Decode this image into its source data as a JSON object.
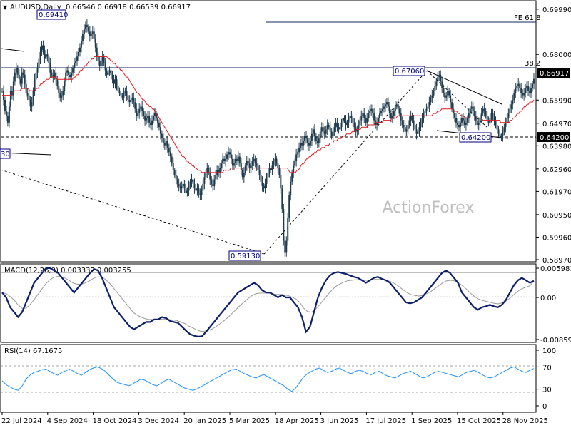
{
  "chart_data": {
    "type": "candlestick",
    "symbol_title": "AUDUSD,Daily",
    "ohlc_header": "0.66546 0.66918 0.66539 0.66917",
    "watermark": "ActionForex",
    "x_tick_labels": [
      "22 Jul 2024",
      "4 Sep 2024",
      "18 Oct 2024",
      "3 Dec 2024",
      "20 Jan 2025",
      "5 Mar 2025",
      "18 Apr 2025",
      "3 Jun 2025",
      "17 Jul 2025",
      "1 Sep 2025",
      "15 Oct 2025",
      "28 Nov 2025"
    ],
    "price_axis": {
      "ylim": [
        0.5897,
        0.7014
      ],
      "ticks": [
        "0.69990",
        "0.68000",
        "0.66917",
        "0.65990",
        "0.64970",
        "0.64200",
        "0.63980",
        "0.62960",
        "0.61970",
        "0.60950",
        "0.59960",
        "0.58970"
      ]
    },
    "current_price": "0.66917",
    "level_labels": {
      "high": "0.69410",
      "mid": "0.67060",
      "low": "0.59130",
      "support": "0.64200",
      "trend_low": "0.64200",
      "left_edge": "30"
    },
    "fib_labels": {
      "fe": "FE 61.8",
      "retrace": "38.2"
    },
    "close_series": [
      0.664,
      0.66,
      0.655,
      0.653,
      0.65,
      0.657,
      0.664,
      0.662,
      0.668,
      0.672,
      0.674,
      0.671,
      0.669,
      0.667,
      0.672,
      0.671,
      0.667,
      0.663,
      0.662,
      0.66,
      0.657,
      0.659,
      0.664,
      0.669,
      0.672,
      0.674,
      0.678,
      0.681,
      0.684,
      0.682,
      0.678,
      0.68,
      0.679,
      0.676,
      0.672,
      0.671,
      0.67,
      0.672,
      0.669,
      0.666,
      0.663,
      0.661,
      0.662,
      0.664,
      0.668,
      0.672,
      0.673,
      0.671,
      0.67,
      0.672,
      0.674,
      0.676,
      0.677,
      0.679,
      0.681,
      0.683,
      0.686,
      0.689,
      0.691,
      0.693,
      0.692,
      0.69,
      0.688,
      0.689,
      0.69,
      0.687,
      0.683,
      0.679,
      0.677,
      0.675,
      0.677,
      0.679,
      0.676,
      0.673,
      0.671,
      0.672,
      0.673,
      0.671,
      0.669,
      0.667,
      0.669,
      0.666,
      0.664,
      0.663,
      0.662,
      0.661,
      0.663,
      0.664,
      0.662,
      0.66,
      0.659,
      0.66,
      0.661,
      0.659,
      0.656,
      0.653,
      0.654,
      0.656,
      0.657,
      0.655,
      0.653,
      0.651,
      0.652,
      0.653,
      0.65,
      0.649,
      0.651,
      0.653,
      0.654,
      0.652,
      0.65,
      0.648,
      0.645,
      0.643,
      0.641,
      0.64,
      0.642,
      0.639,
      0.637,
      0.635,
      0.632,
      0.629,
      0.627,
      0.625,
      0.623,
      0.622,
      0.621,
      0.622,
      0.623,
      0.621,
      0.619,
      0.62,
      0.622,
      0.624,
      0.625,
      0.623,
      0.621,
      0.62,
      0.621,
      0.619,
      0.618,
      0.62,
      0.623,
      0.626,
      0.628,
      0.63,
      0.628,
      0.625,
      0.623,
      0.622,
      0.625,
      0.627,
      0.629,
      0.628,
      0.63,
      0.632,
      0.634,
      0.633,
      0.634,
      0.636,
      0.637,
      0.636,
      0.634,
      0.631,
      0.632,
      0.634,
      0.633,
      0.635,
      0.632,
      0.629,
      0.626,
      0.628,
      0.631,
      0.633,
      0.632,
      0.63,
      0.631,
      0.633,
      0.634,
      0.632,
      0.631,
      0.629,
      0.627,
      0.624,
      0.622,
      0.621,
      0.623,
      0.626,
      0.628,
      0.63,
      0.629,
      0.631,
      0.633,
      0.634,
      0.632,
      0.63,
      0.627,
      0.621,
      0.612,
      0.598,
      0.593,
      0.598,
      0.608,
      0.618,
      0.624,
      0.628,
      0.631,
      0.633,
      0.636,
      0.637,
      0.639,
      0.641,
      0.64,
      0.642,
      0.644,
      0.643,
      0.641,
      0.64,
      0.642,
      0.645,
      0.647,
      0.644,
      0.642,
      0.641,
      0.643,
      0.646,
      0.648,
      0.646,
      0.645,
      0.647,
      0.649,
      0.648,
      0.646,
      0.644,
      0.646,
      0.648,
      0.65,
      0.648,
      0.647,
      0.648,
      0.65,
      0.652,
      0.651,
      0.649,
      0.65,
      0.652,
      0.653,
      0.652,
      0.65,
      0.648,
      0.646,
      0.647,
      0.649,
      0.651,
      0.653,
      0.654,
      0.652,
      0.65,
      0.652,
      0.654,
      0.655,
      0.656,
      0.654,
      0.651,
      0.649,
      0.65,
      0.652,
      0.654,
      0.655,
      0.656,
      0.657,
      0.658,
      0.659,
      0.657,
      0.654,
      0.652,
      0.653,
      0.655,
      0.657,
      0.658,
      0.656,
      0.654,
      0.651,
      0.649,
      0.648,
      0.646,
      0.647,
      0.649,
      0.651,
      0.653,
      0.651,
      0.649,
      0.647,
      0.645,
      0.646,
      0.648,
      0.65,
      0.652,
      0.654,
      0.655,
      0.656,
      0.657,
      0.659,
      0.661,
      0.662,
      0.664,
      0.666,
      0.668,
      0.67,
      0.671,
      0.668,
      0.665,
      0.663,
      0.661,
      0.662,
      0.664,
      0.662,
      0.659,
      0.656,
      0.654,
      0.652,
      0.65,
      0.649,
      0.648,
      0.65,
      0.652,
      0.651,
      0.649,
      0.65,
      0.652,
      0.654,
      0.656,
      0.657,
      0.655,
      0.653,
      0.651,
      0.649,
      0.65,
      0.652,
      0.654,
      0.656,
      0.655,
      0.653,
      0.651,
      0.65,
      0.652,
      0.654,
      0.653,
      0.651,
      0.649,
      0.647,
      0.645,
      0.643,
      0.644,
      0.646,
      0.648,
      0.65,
      0.652,
      0.654,
      0.656,
      0.658,
      0.66,
      0.663,
      0.665,
      0.666,
      0.667,
      0.665,
      0.663,
      0.662,
      0.663,
      0.665,
      0.666,
      0.664,
      0.663,
      0.665,
      0.667,
      0.6692
    ],
    "ma_series": [
      0.662,
      0.662,
      0.662,
      0.662,
      0.662,
      0.662,
      0.662,
      0.663,
      0.663,
      0.664,
      0.664,
      0.664,
      0.664,
      0.664,
      0.665,
      0.665,
      0.665,
      0.665,
      0.665,
      0.665,
      0.664,
      0.664,
      0.664,
      0.664,
      0.664,
      0.665,
      0.665,
      0.666,
      0.667,
      0.667,
      0.668,
      0.668,
      0.669,
      0.669,
      0.669,
      0.67,
      0.67,
      0.67,
      0.67,
      0.67,
      0.669,
      0.669,
      0.669,
      0.669,
      0.669,
      0.669,
      0.669,
      0.669,
      0.669,
      0.669,
      0.669,
      0.669,
      0.67,
      0.67,
      0.671,
      0.671,
      0.672,
      0.673,
      0.673,
      0.674,
      0.675,
      0.675,
      0.676,
      0.677,
      0.677,
      0.678,
      0.678,
      0.679,
      0.679,
      0.679,
      0.679,
      0.679,
      0.679,
      0.679,
      0.679,
      0.679,
      0.679,
      0.678,
      0.678,
      0.677,
      0.677,
      0.676,
      0.676,
      0.675,
      0.674,
      0.674,
      0.673,
      0.673,
      0.672,
      0.671,
      0.67,
      0.67,
      0.669,
      0.668,
      0.667,
      0.666,
      0.665,
      0.664,
      0.663,
      0.663,
      0.662,
      0.661,
      0.66,
      0.66,
      0.659,
      0.658,
      0.658,
      0.657,
      0.657,
      0.656,
      0.656,
      0.655,
      0.654,
      0.653,
      0.652,
      0.651,
      0.65,
      0.649,
      0.648,
      0.647,
      0.646,
      0.645,
      0.644,
      0.643,
      0.642,
      0.641,
      0.64,
      0.639,
      0.638,
      0.637,
      0.636,
      0.635,
      0.635,
      0.634,
      0.633,
      0.633,
      0.632,
      0.632,
      0.631,
      0.631,
      0.63,
      0.63,
      0.629,
      0.629,
      0.629,
      0.628,
      0.628,
      0.628,
      0.628,
      0.628,
      0.628,
      0.628,
      0.628,
      0.628,
      0.628,
      0.628,
      0.628,
      0.628,
      0.628,
      0.628,
      0.628,
      0.629,
      0.629,
      0.629,
      0.629,
      0.629,
      0.63,
      0.63,
      0.63,
      0.63,
      0.63,
      0.63,
      0.63,
      0.63,
      0.63,
      0.63,
      0.63,
      0.63,
      0.63,
      0.63,
      0.63,
      0.63,
      0.63,
      0.63,
      0.63,
      0.63,
      0.63,
      0.63,
      0.63,
      0.63,
      0.63,
      0.63,
      0.63,
      0.63,
      0.63,
      0.63,
      0.63,
      0.63,
      0.63,
      0.63,
      0.63,
      0.63,
      0.63,
      0.63,
      0.63,
      0.63,
      0.63,
      0.63,
      0.629,
      0.628,
      0.628,
      0.628,
      0.628,
      0.628,
      0.629,
      0.629,
      0.63,
      0.631,
      0.632,
      0.632,
      0.633,
      0.634,
      0.634,
      0.635,
      0.635,
      0.636,
      0.636,
      0.637,
      0.637,
      0.638,
      0.638,
      0.638,
      0.639,
      0.639,
      0.639,
      0.64,
      0.64,
      0.64,
      0.641,
      0.641,
      0.641,
      0.642,
      0.642,
      0.642,
      0.643,
      0.643,
      0.643,
      0.644,
      0.644,
      0.644,
      0.645,
      0.645,
      0.645,
      0.645,
      0.646,
      0.646,
      0.646,
      0.647,
      0.647,
      0.647,
      0.647,
      0.648,
      0.648,
      0.648,
      0.648,
      0.648,
      0.649,
      0.649,
      0.649,
      0.649,
      0.649,
      0.65,
      0.65,
      0.65,
      0.65,
      0.65,
      0.65,
      0.651,
      0.651,
      0.651,
      0.651,
      0.651,
      0.651,
      0.652,
      0.652,
      0.652,
      0.652,
      0.653,
      0.653,
      0.653,
      0.653,
      0.653,
      0.653,
      0.653,
      0.653,
      0.653,
      0.653,
      0.653,
      0.653,
      0.653,
      0.653,
      0.653,
      0.653,
      0.653,
      0.653,
      0.653,
      0.653,
      0.653,
      0.653,
      0.653,
      0.653,
      0.653,
      0.653,
      0.654,
      0.654,
      0.654,
      0.655,
      0.655,
      0.655,
      0.656,
      0.656,
      0.656,
      0.656,
      0.656,
      0.656,
      0.656,
      0.656,
      0.656,
      0.655,
      0.655,
      0.655,
      0.654,
      0.654,
      0.653,
      0.653,
      0.653,
      0.652,
      0.652,
      0.652,
      0.652,
      0.652,
      0.652,
      0.652,
      0.652,
      0.652,
      0.652,
      0.652,
      0.652,
      0.652,
      0.651,
      0.651,
      0.651,
      0.651,
      0.651,
      0.651,
      0.651,
      0.651,
      0.651,
      0.651,
      0.651,
      0.651,
      0.651,
      0.65,
      0.65,
      0.65,
      0.65,
      0.65,
      0.65,
      0.65,
      0.651,
      0.651,
      0.652,
      0.652,
      0.653,
      0.654,
      0.654,
      0.655,
      0.655,
      0.656,
      0.657,
      0.657,
      0.658,
      0.658,
      0.659,
      0.659,
      0.659,
      0.66
    ],
    "macd": {
      "title": "MACD(12,26,9) 0.003337 0.003255",
      "ylim": [
        -0.00859,
        0.005981
      ],
      "ticks": [
        "0.005981",
        "0.00",
        "-0.00859"
      ],
      "main_series": [
        0.001,
        0.0,
        -0.002,
        -0.003,
        -0.004,
        -0.003,
        -0.001,
        0.001,
        0.003,
        0.004,
        0.005,
        0.006,
        0.006,
        0.0055,
        0.005,
        0.004,
        0.003,
        0.002,
        0.001,
        0.002,
        0.003,
        0.004,
        0.005,
        0.0058,
        0.0055,
        0.004,
        0.002,
        0.0,
        -0.002,
        -0.003,
        -0.004,
        -0.005,
        -0.006,
        -0.0065,
        -0.006,
        -0.0055,
        -0.005,
        -0.005,
        -0.0045,
        -0.0045,
        -0.004,
        -0.0042,
        -0.0048,
        -0.005,
        -0.0052,
        -0.006,
        -0.0068,
        -0.0075,
        -0.0078,
        -0.008,
        -0.0079,
        -0.007,
        -0.006,
        -0.005,
        -0.004,
        -0.003,
        -0.002,
        -0.001,
        0.0,
        0.001,
        0.0015,
        0.002,
        0.0025,
        0.003,
        0.0025,
        0.0015,
        0.001,
        0.001,
        0.0005,
        0.0,
        0.0005,
        0.0,
        0.0,
        -0.001,
        -0.002,
        -0.004,
        -0.007,
        -0.006,
        -0.003,
        0.0,
        0.002,
        0.0035,
        0.0045,
        0.005,
        0.0052,
        0.005,
        0.0048,
        0.0045,
        0.0042,
        0.004,
        0.0035,
        0.003,
        0.0035,
        0.004,
        0.0042,
        0.0038,
        0.0035,
        0.003,
        0.002,
        0.001,
        0.0,
        -0.001,
        -0.0012,
        -0.001,
        -0.0005,
        0.0,
        0.001,
        0.002,
        0.003,
        0.004,
        0.005,
        0.0055,
        0.005,
        0.004,
        0.003,
        0.001,
        0.0,
        -0.001,
        -0.002,
        -0.0025,
        -0.002,
        -0.0018,
        -0.0015,
        -0.0018,
        -0.002,
        -0.0015,
        -0.0005,
        0.001,
        0.0025,
        0.0035,
        0.004,
        0.0035,
        0.003,
        0.0034
      ],
      "signal_series": [
        0.001,
        0.0008,
        0.0002,
        -0.0005,
        -0.0015,
        -0.0022,
        -0.0022,
        -0.0015,
        -0.0005,
        0.0006,
        0.0017,
        0.0028,
        0.0036,
        0.0041,
        0.0043,
        0.0042,
        0.0039,
        0.0034,
        0.0029,
        0.0027,
        0.0027,
        0.003,
        0.0034,
        0.0039,
        0.0042,
        0.0042,
        0.0037,
        0.003,
        0.002,
        0.001,
        0.0,
        -0.001,
        -0.002,
        -0.003,
        -0.0036,
        -0.004,
        -0.0043,
        -0.0045,
        -0.0045,
        -0.0045,
        -0.0044,
        -0.0044,
        -0.0045,
        -0.0046,
        -0.0047,
        -0.005,
        -0.0053,
        -0.0058,
        -0.0062,
        -0.0066,
        -0.0069,
        -0.0069,
        -0.0067,
        -0.0064,
        -0.0059,
        -0.0053,
        -0.0047,
        -0.004,
        -0.0032,
        -0.0024,
        -0.0016,
        -0.0009,
        -0.0002,
        0.0004,
        0.0008,
        0.0009,
        0.0009,
        0.0009,
        0.0008,
        0.0006,
        0.0006,
        0.0005,
        0.0004,
        0.0001,
        -0.0003,
        -0.001,
        -0.0022,
        -0.0029,
        -0.003,
        -0.0024,
        -0.0015,
        -0.0005,
        0.0005,
        0.0014,
        0.0022,
        0.0027,
        0.0031,
        0.0034,
        0.0035,
        0.0036,
        0.0036,
        0.0035,
        0.0035,
        0.0036,
        0.0037,
        0.0037,
        0.0037,
        0.0035,
        0.0032,
        0.0028,
        0.0022,
        0.0016,
        0.001,
        0.0006,
        0.0004,
        0.0003,
        0.0004,
        0.0008,
        0.0012,
        0.0018,
        0.0024,
        0.003,
        0.0034,
        0.0035,
        0.0034,
        0.003,
        0.0024,
        0.0017,
        0.0009,
        0.0002,
        -0.0003,
        -0.0006,
        -0.0008,
        -0.001,
        -0.0012,
        -0.0013,
        -0.0011,
        -0.0007,
        -0.0001,
        0.0006,
        0.0013,
        0.0018,
        0.0021,
        0.0024,
        0.0033
      ]
    },
    "rsi": {
      "title": "RSI(14) 67.1675",
      "ylim": [
        0,
        100
      ],
      "ticks": [
        "100",
        "70",
        "30",
        "0"
      ],
      "series": [
        45,
        38,
        34,
        30,
        28,
        35,
        48,
        55,
        60,
        62,
        65,
        66,
        62,
        58,
        55,
        60,
        63,
        66,
        62,
        58,
        55,
        60,
        65,
        68,
        70,
        67,
        62,
        55,
        48,
        42,
        40,
        38,
        36,
        40,
        44,
        48,
        46,
        42,
        38,
        36,
        40,
        45,
        48,
        44,
        40,
        36,
        32,
        30,
        28,
        30,
        34,
        38,
        42,
        46,
        50,
        54,
        58,
        62,
        65,
        66,
        62,
        58,
        55,
        52,
        50,
        54,
        56,
        52,
        48,
        44,
        40,
        36,
        30,
        26,
        32,
        42,
        52,
        58,
        62,
        66,
        68,
        64,
        60,
        62,
        66,
        68,
        64,
        60,
        58,
        62,
        64,
        62,
        58,
        56,
        60,
        62,
        58,
        54,
        52,
        50,
        54,
        58,
        60,
        62,
        58,
        54,
        50,
        52,
        56,
        60,
        62,
        60,
        58,
        56,
        54,
        52,
        56,
        60,
        62,
        64,
        60,
        56,
        52,
        50,
        52,
        56,
        60,
        64,
        68,
        70,
        66,
        62,
        60,
        64,
        67
      ]
    }
  }
}
